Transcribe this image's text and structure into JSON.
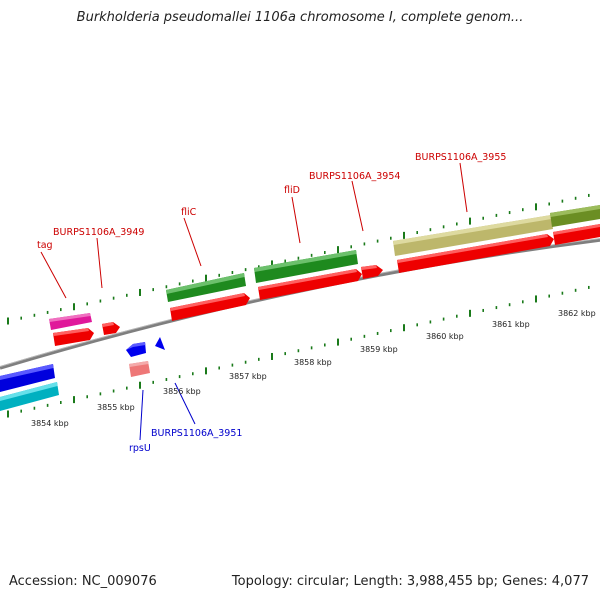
{
  "title": "Burkholderia pseudomallei 1106a chromosome I, complete genom...",
  "footer": {
    "accession": "Accession: NC_009076",
    "summary": "Topology: circular; Length: 3,988,455 bp; Genes: 4,077"
  },
  "colors": {
    "forward_label": "#cc0000",
    "reverse_label": "#0000cc",
    "tick": "#1a7a1a",
    "backbone": "#808080"
  },
  "scale": {
    "unit": "kbp",
    "labels": [
      {
        "kbp": 3854,
        "text": "3854 kbp"
      },
      {
        "kbp": 3855,
        "text": "3855 kbp"
      },
      {
        "kbp": 3856,
        "text": "3856 kbp"
      },
      {
        "kbp": 3857,
        "text": "3857 kbp"
      },
      {
        "kbp": 3858,
        "text": "3858 kbp"
      },
      {
        "kbp": 3859,
        "text": "3859 kbp"
      },
      {
        "kbp": 3860,
        "text": "3860 kbp"
      },
      {
        "kbp": 3861,
        "text": "3861 kbp"
      },
      {
        "kbp": 3862,
        "text": "3862 kbp"
      }
    ]
  },
  "gene_labels": [
    {
      "text": "tag",
      "strand": "forward"
    },
    {
      "text": "BURPS1106A_3949",
      "strand": "forward"
    },
    {
      "text": "fliC",
      "strand": "forward"
    },
    {
      "text": "fliD",
      "strand": "forward"
    },
    {
      "text": "BURPS1106A_3954",
      "strand": "forward"
    },
    {
      "text": "BURPS1106A_3955",
      "strand": "forward"
    },
    {
      "text": "rpsU",
      "strand": "reverse"
    },
    {
      "text": "BURPS1106A_3951",
      "strand": "reverse"
    }
  ]
}
